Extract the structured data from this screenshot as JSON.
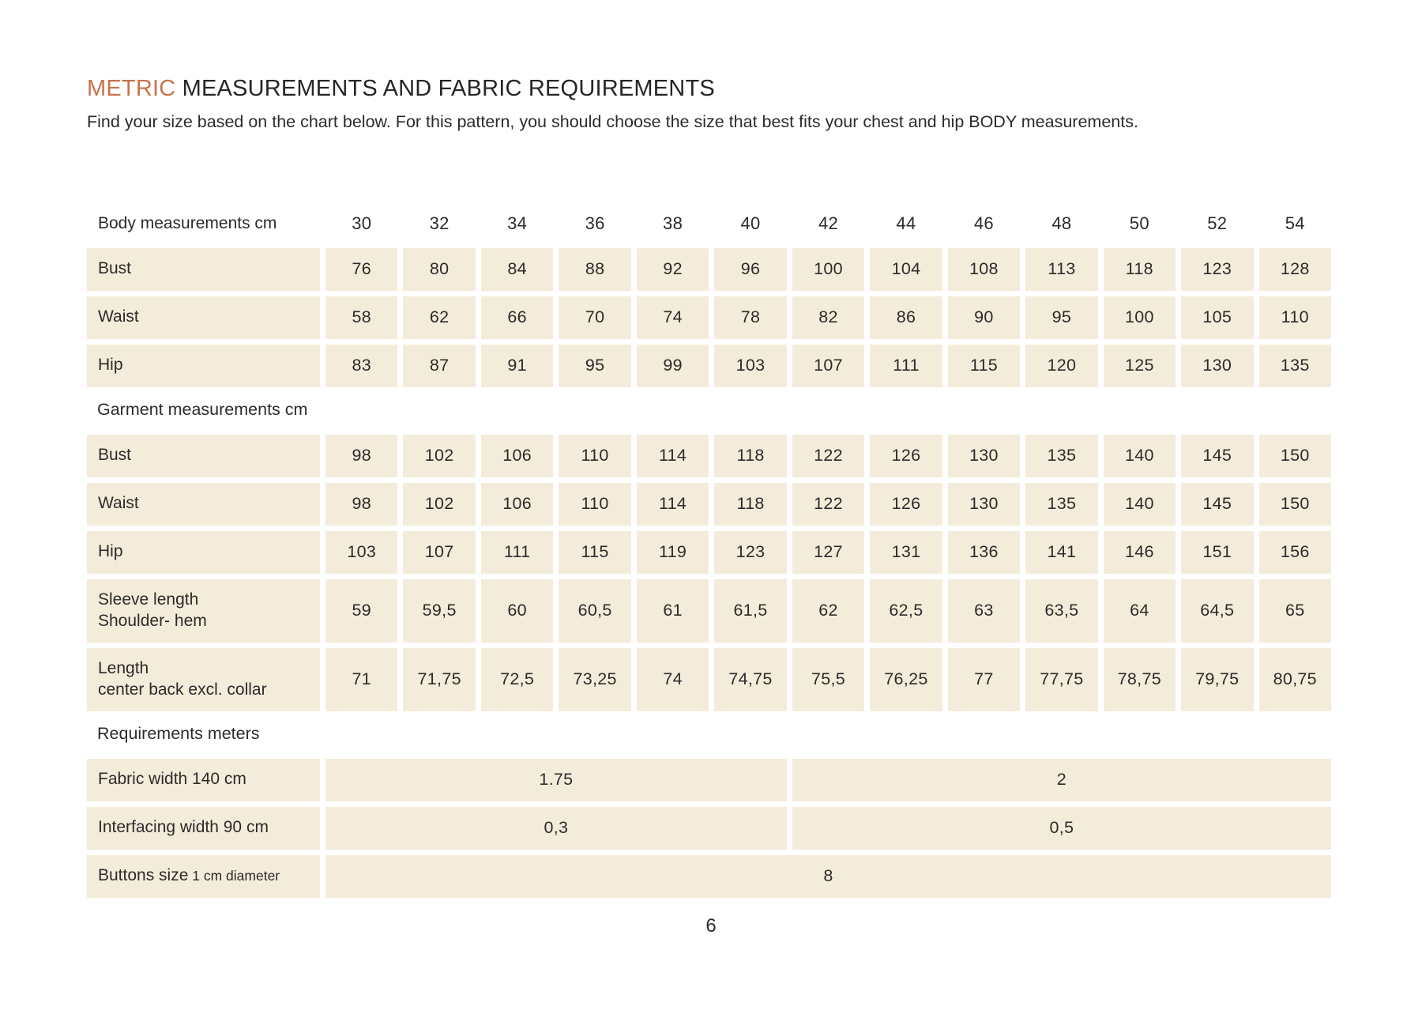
{
  "title": {
    "highlight": "METRIC",
    "rest": " MEASUREMENTS AND FABRIC REQUIREMENTS"
  },
  "intro": "Find your size based on the chart below. For this pattern, you should choose the size that best fits your chest and hip BODY measurements.",
  "page_number": "6",
  "colors": {
    "accent": "#c8734d",
    "cell_background": "#f4ecda",
    "text": "#2b2b2b",
    "page_background": "#ffffff"
  },
  "chart_data": {
    "type": "table",
    "size_header": {
      "label": "Body measurements cm",
      "sizes": [
        "30",
        "32",
        "34",
        "36",
        "38",
        "40",
        "42",
        "44",
        "46",
        "48",
        "50",
        "52",
        "54"
      ]
    },
    "body_rows": [
      {
        "label": "Bust",
        "values": [
          "76",
          "80",
          "84",
          "88",
          "92",
          "96",
          "100",
          "104",
          "108",
          "113",
          "118",
          "123",
          "128"
        ]
      },
      {
        "label": "Waist",
        "values": [
          "58",
          "62",
          "66",
          "70",
          "74",
          "78",
          "82",
          "86",
          "90",
          "95",
          "100",
          "105",
          "110"
        ]
      },
      {
        "label": "Hip",
        "values": [
          "83",
          "87",
          "91",
          "95",
          "99",
          "103",
          "107",
          "111",
          "115",
          "120",
          "125",
          "130",
          "135"
        ]
      }
    ],
    "garment_section_label": "Garment measurements cm",
    "garment_rows": [
      {
        "label": "Bust",
        "values": [
          "98",
          "102",
          "106",
          "110",
          "114",
          "118",
          "122",
          "126",
          "130",
          "135",
          "140",
          "145",
          "150"
        ]
      },
      {
        "label": "Waist",
        "values": [
          "98",
          "102",
          "106",
          "110",
          "114",
          "118",
          "122",
          "126",
          "130",
          "135",
          "140",
          "145",
          "150"
        ]
      },
      {
        "label": "Hip",
        "values": [
          "103",
          "107",
          "111",
          "115",
          "119",
          "123",
          "127",
          "131",
          "136",
          "141",
          "146",
          "151",
          "156"
        ]
      },
      {
        "label": "Sleeve length",
        "label2": "Shoulder- hem",
        "values": [
          "59",
          "59,5",
          "60",
          "60,5",
          "61",
          "61,5",
          "62",
          "62,5",
          "63",
          "63,5",
          "64",
          "64,5",
          "65"
        ]
      },
      {
        "label": "Length",
        "label2": "center back excl. collar",
        "values": [
          "71",
          "71,75",
          "72,5",
          "73,25",
          "74",
          "74,75",
          "75,5",
          "76,25",
          "77",
          "77,75",
          "78,75",
          "79,75",
          "80,75"
        ]
      }
    ],
    "requirements_section_label": "Requirements meters",
    "requirement_rows": [
      {
        "label": "Fabric width 140 cm",
        "spans": [
          {
            "cols": 6,
            "value": "1.75"
          },
          {
            "cols": 7,
            "value": "2"
          }
        ]
      },
      {
        "label": "Interfacing width 90 cm",
        "spans": [
          {
            "cols": 6,
            "value": "0,3"
          },
          {
            "cols": 7,
            "value": "0,5"
          }
        ]
      },
      {
        "label": "Buttons size",
        "label_small": "1 cm diameter",
        "spans": [
          {
            "cols": 13,
            "value": "8"
          }
        ]
      }
    ]
  }
}
